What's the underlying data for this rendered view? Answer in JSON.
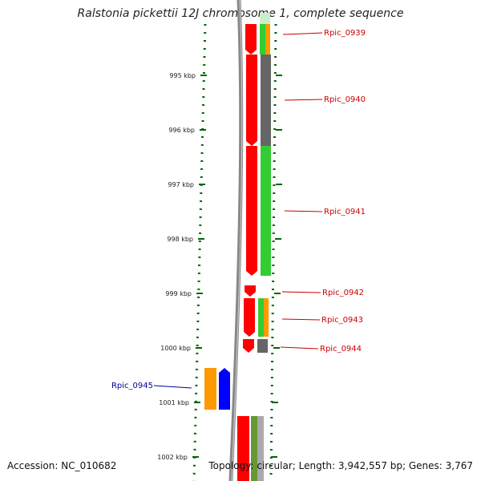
{
  "title": "Ralstonia pickettii 12J chromosome 1, complete sequence",
  "footer": {
    "accession": "Accession: NC_010682",
    "summary": "Topology: circular; Length: 3,942,557 bp; Genes: 3,767"
  },
  "colors": {
    "gene": "#ff0000",
    "cds_green": "#33cc33",
    "cds_orange": "#ff9900",
    "cds_gray": "#666666",
    "cds_blue": "#0000ff",
    "label_red": "#cc0000",
    "label_blue": "#000099",
    "ruler": "#006600",
    "backbone": "#888888"
  },
  "scale_ticks": [
    "995 kbp",
    "996 kbp",
    "997 kbp",
    "998 kbp",
    "999 kbp",
    "1000 kbp",
    "1001 kbp",
    "1002 kbp"
  ],
  "gene_labels": [
    {
      "name": "Rpic_0939",
      "strand": "forward"
    },
    {
      "name": "Rpic_0940",
      "strand": "forward"
    },
    {
      "name": "Rpic_0941",
      "strand": "forward"
    },
    {
      "name": "Rpic_0942",
      "strand": "forward"
    },
    {
      "name": "Rpic_0943",
      "strand": "forward"
    },
    {
      "name": "Rpic_0944",
      "strand": "forward"
    },
    {
      "name": "Rpic_0945",
      "strand": "reverse"
    }
  ]
}
